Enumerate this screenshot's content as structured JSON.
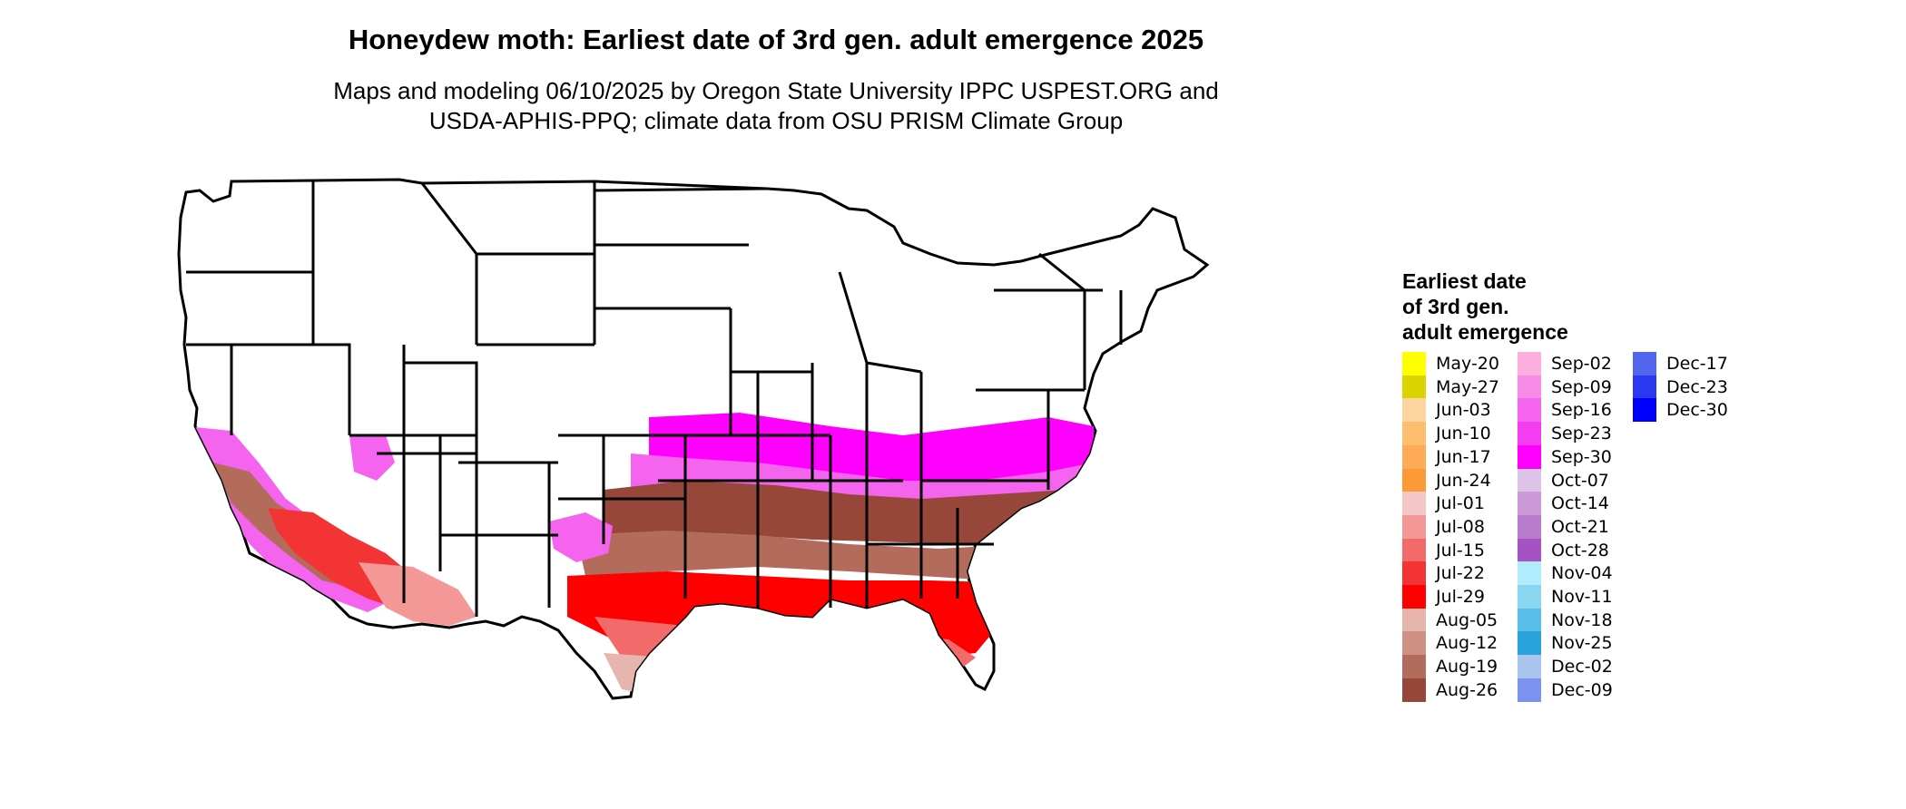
{
  "title": "Honeydew moth: Earliest date of 3rd gen. adult emergence 2025",
  "subtitle_line1": "Maps and modeling 06/10/2025 by Oregon State University IPPC USPEST.ORG and",
  "subtitle_line2": "USDA-APHIS-PPQ; climate data from OSU PRISM Climate Group",
  "legend": {
    "title_line1": "Earliest date",
    "title_line2": "of 3rd gen.",
    "title_line3": "adult emergence",
    "items": [
      {
        "label": "May-20",
        "color": "#ffff00"
      },
      {
        "label": "May-27",
        "color": "#dcd400"
      },
      {
        "label": "Jun-03",
        "color": "#fdd49e"
      },
      {
        "label": "Jun-10",
        "color": "#fdbf6f"
      },
      {
        "label": "Jun-17",
        "color": "#fdab55"
      },
      {
        "label": "Jun-24",
        "color": "#fd9a38"
      },
      {
        "label": "Jul-01",
        "color": "#f5c6c6"
      },
      {
        "label": "Jul-08",
        "color": "#f49797"
      },
      {
        "label": "Jul-15",
        "color": "#f26a6a"
      },
      {
        "label": "Jul-22",
        "color": "#f23434"
      },
      {
        "label": "Jul-29",
        "color": "#ff0000"
      },
      {
        "label": "Aug-05",
        "color": "#e6b5ad"
      },
      {
        "label": "Aug-12",
        "color": "#cf9183"
      },
      {
        "label": "Aug-19",
        "color": "#b36b5c"
      },
      {
        "label": "Aug-26",
        "color": "#96473a"
      },
      {
        "label": "Sep-02",
        "color": "#fcaede"
      },
      {
        "label": "Sep-09",
        "color": "#f88ae8"
      },
      {
        "label": "Sep-16",
        "color": "#f564ee"
      },
      {
        "label": "Sep-23",
        "color": "#f43cf2"
      },
      {
        "label": "Sep-30",
        "color": "#ff00ff"
      },
      {
        "label": "Oct-07",
        "color": "#dec3e8"
      },
      {
        "label": "Oct-14",
        "color": "#cc9ad8"
      },
      {
        "label": "Oct-21",
        "color": "#b97ccd"
      },
      {
        "label": "Oct-28",
        "color": "#a552c2"
      },
      {
        "label": "Nov-04",
        "color": "#b0ecfb"
      },
      {
        "label": "Nov-11",
        "color": "#88d6f0"
      },
      {
        "label": "Nov-18",
        "color": "#58bde8"
      },
      {
        "label": "Nov-25",
        "color": "#2aa3da"
      },
      {
        "label": "Dec-02",
        "color": "#a8c4ef"
      },
      {
        "label": "Dec-09",
        "color": "#7b93ee"
      },
      {
        "label": "Dec-17",
        "color": "#5265ee"
      },
      {
        "label": "Dec-23",
        "color": "#2a38f2"
      },
      {
        "label": "Dec-30",
        "color": "#0000ff"
      }
    ]
  },
  "map_fill": {
    "south_bands": [
      "#ff0000",
      "#f23434",
      "#b36b5c",
      "#f564ee"
    ],
    "florida": [
      "#fdab55",
      "#ffff00"
    ],
    "west": [
      "#f564ee",
      "#b36b5c",
      "#f23434"
    ]
  }
}
